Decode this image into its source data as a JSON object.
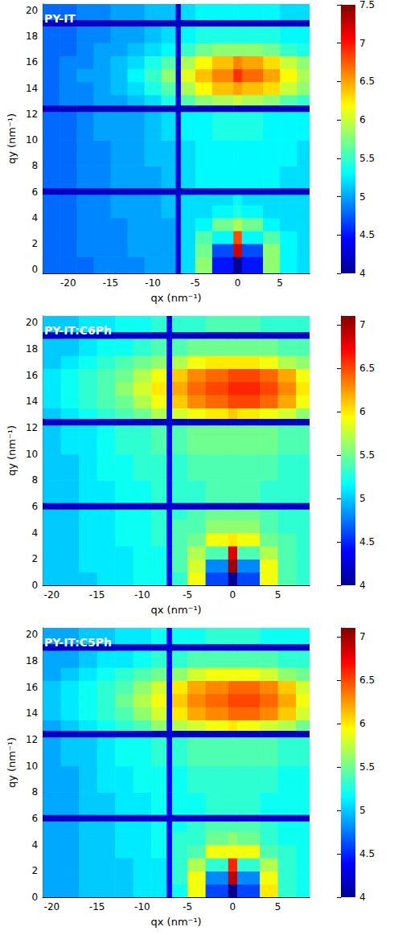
{
  "chart_data": [
    {
      "type": "heatmap",
      "title": "PY-IT",
      "x_label": "qx (nm⁻¹)",
      "y_label": "qy (nm⁻¹)",
      "xlim": [
        -23,
        8.5
      ],
      "ylim": [
        -0.3,
        20.5
      ],
      "xticks": [
        -20,
        -15,
        -10,
        -5,
        0,
        5
      ],
      "yticks": [
        0,
        2,
        4,
        6,
        8,
        10,
        12,
        14,
        16,
        18,
        20
      ],
      "x_edges": [
        -23,
        -21,
        -19,
        -17,
        -15,
        -13,
        -11,
        -9,
        -7.3,
        -6.7,
        -5,
        -3,
        -0.5,
        0.5,
        3,
        5,
        7,
        8.5
      ],
      "y_edges": [
        -0.3,
        1,
        2,
        3,
        4,
        5,
        5.8,
        6.3,
        8,
        10,
        12.2,
        12.7,
        13.5,
        14.5,
        15.5,
        16.5,
        17.5,
        18.8,
        19.3,
        20.5
      ],
      "cells": [
        [
          4.8,
          4.8,
          4.8,
          4.9,
          4.9,
          4.9,
          5.0,
          5.0,
          4.3,
          5.2,
          5.8,
          4.5,
          4.0,
          4.5,
          5.8,
          5.3,
          5.2
        ],
        [
          4.8,
          4.8,
          4.9,
          4.9,
          4.9,
          5.0,
          5.0,
          5.0,
          4.3,
          5.2,
          5.7,
          4.7,
          7.2,
          4.7,
          5.8,
          5.3,
          5.2
        ],
        [
          4.8,
          4.8,
          4.9,
          4.9,
          4.9,
          5.0,
          5.0,
          5.0,
          4.3,
          5.2,
          5.6,
          5.3,
          6.8,
          5.3,
          5.6,
          5.3,
          5.2
        ],
        [
          4.8,
          4.8,
          4.9,
          4.9,
          4.9,
          5.0,
          5.0,
          5.0,
          4.3,
          5.2,
          5.3,
          5.7,
          5.9,
          5.7,
          5.3,
          5.2,
          5.2
        ],
        [
          4.8,
          4.8,
          4.9,
          4.9,
          5.0,
          5.0,
          5.0,
          5.1,
          4.3,
          5.2,
          5.2,
          5.3,
          5.4,
          5.3,
          5.2,
          5.2,
          5.2
        ],
        [
          4.8,
          4.8,
          4.9,
          4.9,
          5.0,
          5.0,
          5.0,
          5.1,
          4.3,
          5.2,
          5.2,
          5.2,
          5.3,
          5.2,
          5.2,
          5.2,
          5.2
        ],
        [
          4.2,
          4.2,
          4.2,
          4.2,
          4.2,
          4.2,
          4.2,
          4.2,
          4.2,
          4.2,
          4.2,
          4.2,
          4.2,
          4.2,
          4.2,
          4.2,
          4.2
        ],
        [
          4.8,
          4.8,
          4.9,
          4.9,
          5.0,
          5.0,
          5.0,
          5.1,
          4.3,
          5.2,
          5.3,
          5.3,
          5.3,
          5.3,
          5.3,
          5.2,
          5.2
        ],
        [
          4.8,
          4.8,
          4.9,
          4.9,
          5.0,
          5.0,
          5.1,
          5.1,
          4.3,
          5.2,
          5.3,
          5.3,
          5.3,
          5.3,
          5.3,
          5.3,
          5.2
        ],
        [
          4.8,
          4.8,
          4.9,
          5.0,
          5.0,
          5.0,
          5.1,
          5.2,
          4.3,
          5.3,
          5.3,
          5.4,
          5.4,
          5.4,
          5.3,
          5.3,
          5.3
        ],
        [
          4.2,
          4.2,
          4.2,
          4.2,
          4.2,
          4.2,
          4.2,
          4.2,
          4.2,
          4.2,
          4.2,
          4.2,
          4.2,
          4.2,
          4.2,
          4.2,
          4.2
        ],
        [
          4.8,
          4.9,
          4.9,
          5.0,
          5.0,
          5.1,
          5.2,
          5.4,
          4.3,
          5.6,
          5.8,
          5.9,
          6.0,
          5.9,
          5.8,
          5.6,
          5.5
        ],
        [
          4.8,
          4.9,
          4.9,
          5.0,
          5.1,
          5.2,
          5.4,
          5.6,
          4.3,
          5.9,
          6.2,
          6.4,
          6.5,
          6.4,
          6.3,
          6.0,
          5.8
        ],
        [
          4.8,
          4.9,
          5.0,
          5.0,
          5.1,
          5.3,
          5.5,
          5.8,
          4.3,
          6.1,
          6.4,
          6.6,
          6.9,
          6.7,
          6.5,
          6.2,
          5.9
        ],
        [
          4.8,
          4.9,
          4.9,
          5.0,
          5.1,
          5.2,
          5.4,
          5.6,
          4.3,
          5.9,
          6.2,
          6.4,
          6.6,
          6.5,
          6.3,
          6.0,
          5.8
        ],
        [
          4.8,
          4.8,
          4.9,
          5.0,
          5.0,
          5.1,
          5.2,
          5.3,
          4.3,
          5.5,
          5.7,
          5.8,
          5.8,
          5.8,
          5.7,
          5.5,
          5.4
        ],
        [
          4.8,
          4.8,
          4.9,
          4.9,
          5.0,
          5.0,
          5.1,
          5.2,
          4.3,
          5.3,
          5.4,
          5.4,
          5.4,
          5.4,
          5.4,
          5.3,
          5.3
        ],
        [
          4.2,
          4.2,
          4.2,
          4.2,
          4.2,
          4.2,
          4.2,
          4.2,
          4.2,
          4.2,
          4.2,
          4.2,
          4.2,
          4.2,
          4.2,
          4.2,
          4.2
        ],
        [
          4.8,
          4.8,
          4.9,
          4.9,
          5.0,
          5.0,
          5.1,
          5.1,
          4.3,
          5.2,
          5.3,
          5.3,
          5.3,
          5.3,
          5.3,
          5.2,
          5.2
        ]
      ],
      "colorbar": {
        "range": [
          4,
          7.5
        ],
        "ticks": [
          4,
          4.5,
          5,
          5.5,
          6,
          6.5,
          7,
          7.5
        ]
      }
    },
    {
      "type": "heatmap",
      "title": "PY-IT:C6Ph",
      "x_label": "qx (nm⁻¹)",
      "y_label": "qy (nm⁻¹)",
      "xlim": [
        -21,
        8.5
      ],
      "ylim": [
        0,
        20.5
      ],
      "xticks": [
        -20,
        -15,
        -10,
        -5,
        0,
        5
      ],
      "yticks": [
        0,
        2,
        4,
        6,
        8,
        10,
        12,
        14,
        16,
        18,
        20
      ],
      "x_edges": [
        -21,
        -19,
        -17,
        -15,
        -13,
        -11,
        -9,
        -7.3,
        -6.7,
        -5,
        -3,
        -0.5,
        0.5,
        3,
        5,
        7,
        8.5
      ],
      "y_edges": [
        0,
        1,
        2,
        3,
        4,
        5,
        5.8,
        6.3,
        8,
        10,
        12.2,
        12.7,
        13.5,
        14.5,
        15.5,
        16.5,
        17.5,
        18.8,
        19.3,
        20.5
      ],
      "cells": [
        [
          5.0,
          5.0,
          5.0,
          5.1,
          5.1,
          5.2,
          5.2,
          4.4,
          5.3,
          5.9,
          4.6,
          4.0,
          4.6,
          5.9,
          5.4,
          5.3
        ],
        [
          5.0,
          5.0,
          5.1,
          5.1,
          5.1,
          5.2,
          5.2,
          4.4,
          5.4,
          5.8,
          4.8,
          7.0,
          4.8,
          5.9,
          5.4,
          5.3
        ],
        [
          5.0,
          5.0,
          5.1,
          5.1,
          5.1,
          5.2,
          5.2,
          4.4,
          5.4,
          5.7,
          5.4,
          6.8,
          5.4,
          5.7,
          5.4,
          5.3
        ],
        [
          5.0,
          5.0,
          5.1,
          5.1,
          5.2,
          5.2,
          5.3,
          4.4,
          5.4,
          5.5,
          5.9,
          6.0,
          5.9,
          5.5,
          5.4,
          5.3
        ],
        [
          5.0,
          5.0,
          5.1,
          5.1,
          5.2,
          5.2,
          5.3,
          4.4,
          5.4,
          5.4,
          5.6,
          5.6,
          5.6,
          5.4,
          5.3,
          5.3
        ],
        [
          5.0,
          5.0,
          5.1,
          5.1,
          5.2,
          5.2,
          5.3,
          4.4,
          5.3,
          5.4,
          5.5,
          5.5,
          5.5,
          5.4,
          5.3,
          5.3
        ],
        [
          4.2,
          4.2,
          4.2,
          4.2,
          4.2,
          4.2,
          4.2,
          4.2,
          4.2,
          4.2,
          4.2,
          4.2,
          4.2,
          4.2,
          4.2,
          4.2
        ],
        [
          5.0,
          5.0,
          5.1,
          5.1,
          5.2,
          5.2,
          5.3,
          4.4,
          5.3,
          5.3,
          5.4,
          5.4,
          5.4,
          5.3,
          5.3,
          5.3
        ],
        [
          5.0,
          5.0,
          5.1,
          5.2,
          5.2,
          5.3,
          5.3,
          4.4,
          5.3,
          5.4,
          5.4,
          5.4,
          5.4,
          5.4,
          5.3,
          5.3
        ],
        [
          5.0,
          5.1,
          5.1,
          5.2,
          5.3,
          5.3,
          5.4,
          4.4,
          5.4,
          5.5,
          5.5,
          5.5,
          5.5,
          5.5,
          5.4,
          5.4
        ],
        [
          4.2,
          4.2,
          4.2,
          4.2,
          4.2,
          4.2,
          4.2,
          4.2,
          4.2,
          4.2,
          4.2,
          4.2,
          4.2,
          4.2,
          4.2,
          4.2
        ],
        [
          5.0,
          5.1,
          5.2,
          5.3,
          5.4,
          5.5,
          5.7,
          4.4,
          5.8,
          5.9,
          6.0,
          6.1,
          6.0,
          5.9,
          5.8,
          5.6
        ],
        [
          5.1,
          5.2,
          5.3,
          5.4,
          5.5,
          5.7,
          5.9,
          4.4,
          6.1,
          6.3,
          6.4,
          6.5,
          6.5,
          6.4,
          6.2,
          5.9
        ],
        [
          5.1,
          5.2,
          5.3,
          5.4,
          5.6,
          5.8,
          6.0,
          4.4,
          6.2,
          6.4,
          6.5,
          6.6,
          6.6,
          6.5,
          6.3,
          6.0
        ],
        [
          5.1,
          5.2,
          5.3,
          5.4,
          5.5,
          5.7,
          5.9,
          4.4,
          6.1,
          6.3,
          6.4,
          6.5,
          6.5,
          6.4,
          6.2,
          5.9
        ],
        [
          5.0,
          5.1,
          5.2,
          5.3,
          5.4,
          5.5,
          5.6,
          4.4,
          5.7,
          5.9,
          6.0,
          6.0,
          6.0,
          5.9,
          5.7,
          5.6
        ],
        [
          5.0,
          5.0,
          5.1,
          5.2,
          5.2,
          5.3,
          5.4,
          4.4,
          5.4,
          5.5,
          5.5,
          5.5,
          5.5,
          5.5,
          5.4,
          5.4
        ],
        [
          4.2,
          4.2,
          4.2,
          4.2,
          4.2,
          4.2,
          4.2,
          4.2,
          4.2,
          4.2,
          4.2,
          4.2,
          4.2,
          4.2,
          4.2,
          4.2
        ],
        [
          5.0,
          5.0,
          5.1,
          5.1,
          5.2,
          5.2,
          5.3,
          4.4,
          5.3,
          5.3,
          5.4,
          5.4,
          5.4,
          5.3,
          5.3,
          5.3
        ]
      ],
      "colorbar": {
        "range": [
          4,
          7.1
        ],
        "ticks": [
          4,
          4.5,
          5,
          5.5,
          6,
          6.5,
          7
        ]
      }
    },
    {
      "type": "heatmap",
      "title": "PY-IT:C5Ph",
      "x_label": "qx (nm⁻¹)",
      "y_label": "qy (nm⁻¹)",
      "xlim": [
        -21,
        8.5
      ],
      "ylim": [
        0,
        20.5
      ],
      "xticks": [
        -20,
        -15,
        -10,
        -5,
        0,
        5
      ],
      "yticks": [
        0,
        2,
        4,
        6,
        8,
        10,
        12,
        14,
        16,
        18,
        20
      ],
      "x_edges": [
        -21,
        -19,
        -17,
        -15,
        -13,
        -11,
        -9,
        -7.3,
        -6.7,
        -5,
        -3,
        -0.5,
        0.5,
        3,
        5,
        7,
        8.5
      ],
      "y_edges": [
        0,
        1,
        2,
        3,
        4,
        5,
        5.8,
        6.3,
        8,
        10,
        12.2,
        12.7,
        13.5,
        14.5,
        15.5,
        16.5,
        17.5,
        18.8,
        19.3,
        20.5
      ],
      "cells": [
        [
          4.9,
          4.9,
          5.0,
          5.0,
          5.0,
          5.1,
          5.1,
          4.4,
          5.2,
          5.9,
          4.6,
          4.0,
          4.6,
          6.0,
          5.3,
          5.2
        ],
        [
          4.9,
          4.9,
          5.0,
          5.0,
          5.0,
          5.1,
          5.1,
          4.4,
          5.3,
          5.9,
          4.8,
          6.9,
          4.8,
          5.9,
          5.3,
          5.2
        ],
        [
          4.9,
          4.9,
          5.0,
          5.0,
          5.0,
          5.1,
          5.1,
          4.4,
          5.3,
          5.7,
          5.3,
          6.6,
          5.3,
          5.7,
          5.3,
          5.2
        ],
        [
          4.9,
          4.9,
          5.0,
          5.0,
          5.1,
          5.1,
          5.2,
          4.4,
          5.3,
          5.4,
          5.9,
          5.9,
          5.9,
          5.4,
          5.3,
          5.2
        ],
        [
          4.9,
          4.9,
          5.0,
          5.0,
          5.1,
          5.1,
          5.2,
          4.4,
          5.3,
          5.3,
          5.5,
          5.6,
          5.5,
          5.3,
          5.2,
          5.2
        ],
        [
          4.9,
          4.9,
          5.0,
          5.0,
          5.1,
          5.1,
          5.2,
          4.4,
          5.2,
          5.3,
          5.4,
          5.4,
          5.4,
          5.3,
          5.2,
          5.2
        ],
        [
          4.2,
          4.2,
          4.2,
          4.2,
          4.2,
          4.2,
          4.2,
          4.2,
          4.2,
          4.2,
          4.2,
          4.2,
          4.2,
          4.2,
          4.2,
          4.2
        ],
        [
          4.9,
          4.9,
          5.0,
          5.0,
          5.1,
          5.1,
          5.2,
          4.4,
          5.2,
          5.2,
          5.3,
          5.3,
          5.3,
          5.2,
          5.2,
          5.2
        ],
        [
          4.9,
          4.9,
          5.0,
          5.1,
          5.1,
          5.2,
          5.2,
          4.4,
          5.2,
          5.3,
          5.3,
          5.3,
          5.3,
          5.3,
          5.2,
          5.2
        ],
        [
          4.9,
          5.0,
          5.0,
          5.1,
          5.2,
          5.2,
          5.3,
          4.4,
          5.3,
          5.4,
          5.4,
          5.4,
          5.4,
          5.4,
          5.3,
          5.3
        ],
        [
          4.2,
          4.2,
          4.2,
          4.2,
          4.2,
          4.2,
          4.2,
          4.2,
          4.2,
          4.2,
          4.2,
          4.2,
          4.2,
          4.2,
          4.2,
          4.2
        ],
        [
          4.9,
          5.0,
          5.1,
          5.2,
          5.3,
          5.4,
          5.6,
          4.4,
          5.7,
          5.8,
          5.9,
          6.0,
          5.9,
          5.8,
          5.7,
          5.5
        ],
        [
          5.0,
          5.1,
          5.2,
          5.3,
          5.4,
          5.6,
          5.8,
          4.4,
          6.0,
          6.2,
          6.3,
          6.4,
          6.4,
          6.3,
          6.1,
          5.8
        ],
        [
          5.0,
          5.1,
          5.2,
          5.3,
          5.5,
          5.7,
          5.9,
          4.4,
          6.1,
          6.3,
          6.4,
          6.5,
          6.5,
          6.4,
          6.2,
          5.9
        ],
        [
          5.0,
          5.1,
          5.2,
          5.3,
          5.4,
          5.6,
          5.8,
          4.4,
          6.0,
          6.2,
          6.3,
          6.4,
          6.4,
          6.3,
          6.1,
          5.8
        ],
        [
          4.9,
          5.0,
          5.1,
          5.2,
          5.3,
          5.4,
          5.5,
          4.4,
          5.6,
          5.8,
          5.9,
          5.9,
          5.9,
          5.8,
          5.6,
          5.5
        ],
        [
          4.9,
          4.9,
          5.0,
          5.1,
          5.1,
          5.2,
          5.3,
          4.4,
          5.3,
          5.4,
          5.4,
          5.4,
          5.4,
          5.4,
          5.3,
          5.3
        ],
        [
          4.2,
          4.2,
          4.2,
          4.2,
          4.2,
          4.2,
          4.2,
          4.2,
          4.2,
          4.2,
          4.2,
          4.2,
          4.2,
          4.2,
          4.2,
          4.2
        ],
        [
          4.9,
          4.9,
          5.0,
          5.0,
          5.1,
          5.1,
          5.2,
          4.4,
          5.2,
          5.2,
          5.3,
          5.3,
          5.3,
          5.2,
          5.2,
          5.2
        ]
      ],
      "colorbar": {
        "range": [
          4,
          7.1
        ],
        "ticks": [
          4,
          4.5,
          5,
          5.5,
          6,
          6.5,
          7
        ]
      }
    }
  ]
}
